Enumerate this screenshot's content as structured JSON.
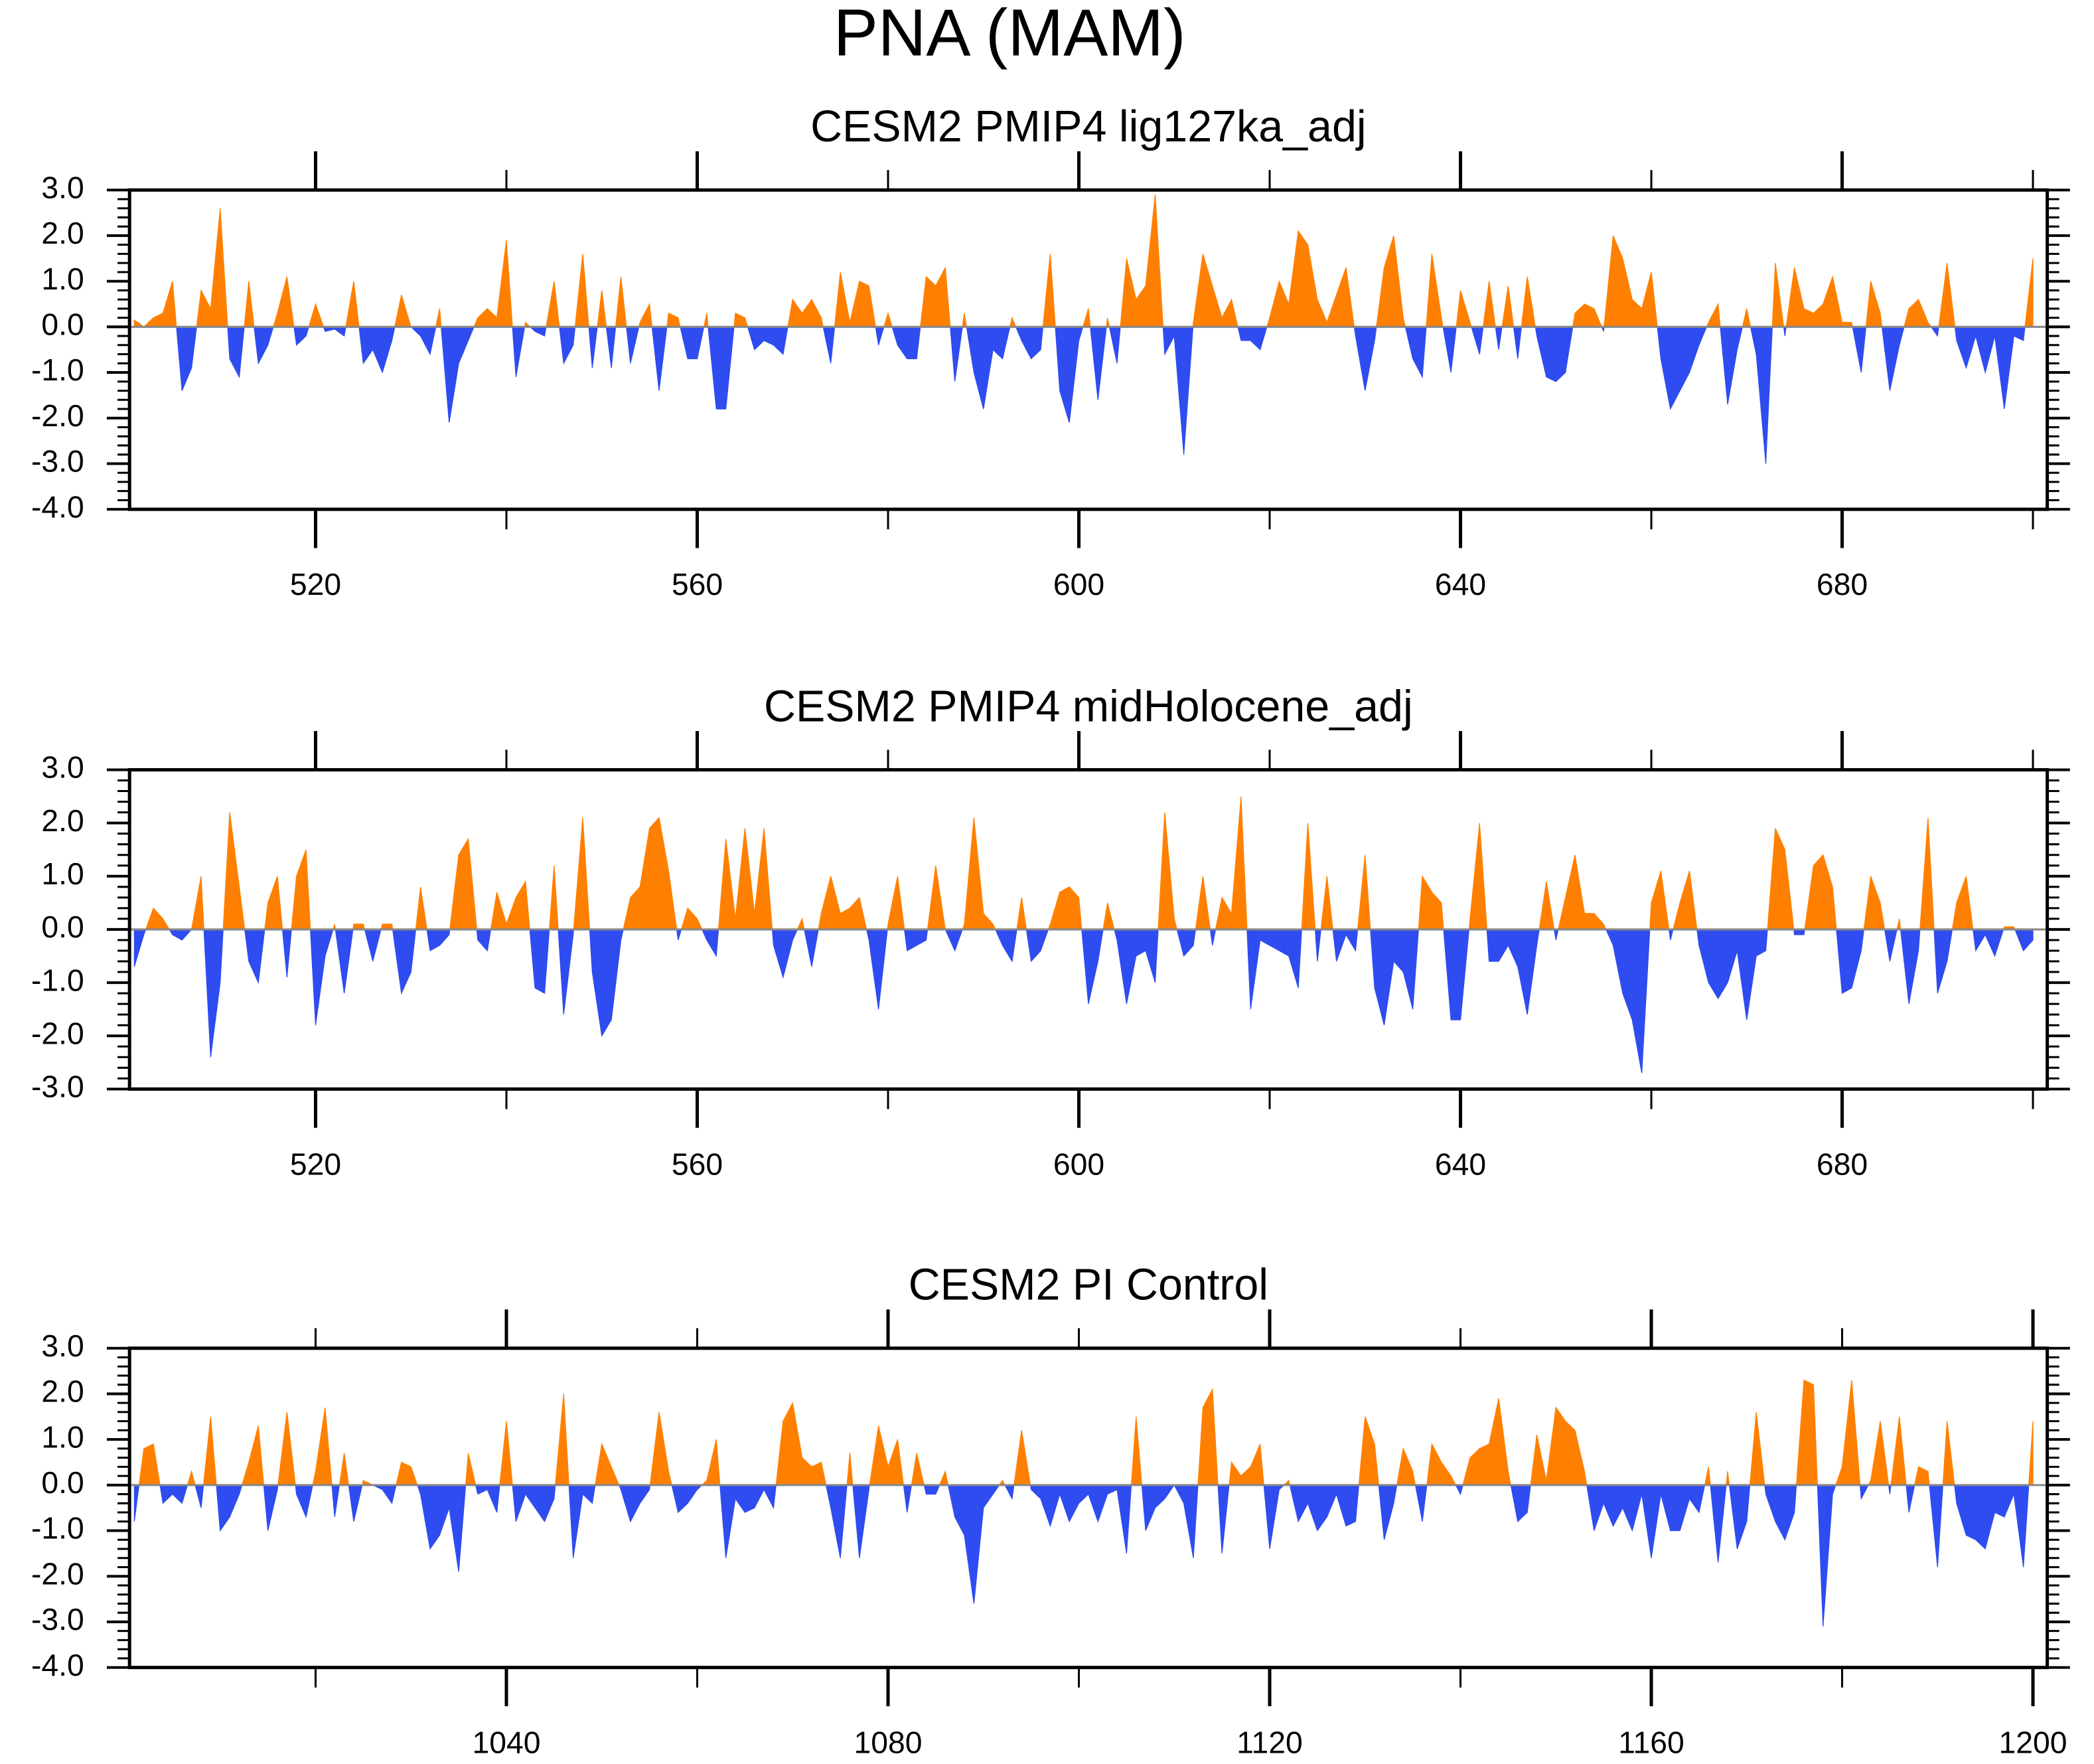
{
  "title": "PNA (MAM)",
  "chart_data": [
    {
      "type": "area",
      "title": "CESM2 PMIP4 lig127ka_adj",
      "color_above": "#ff8000",
      "color_below": "#2f4cf0",
      "xlim": [
        500.5,
        701.5
      ],
      "xticks": [
        520,
        560,
        600,
        640,
        680
      ],
      "ylim": [
        -4,
        3
      ],
      "yticks": [
        {
          "value": -4,
          "label": "-4.0"
        },
        {
          "value": -3,
          "label": "-3.0"
        },
        {
          "value": -2,
          "label": "-2.0"
        },
        {
          "value": -1,
          "label": "-1.0"
        },
        {
          "value": 0,
          "label": "0.0"
        },
        {
          "value": 1,
          "label": "1.0"
        },
        {
          "value": 2,
          "label": "2.0"
        },
        {
          "value": 3,
          "label": "3.0"
        }
      ],
      "x": [
        501,
        502,
        503,
        504,
        505,
        506,
        507,
        508,
        509,
        510,
        511,
        512,
        513,
        514,
        515,
        516,
        517,
        518,
        519,
        520,
        521,
        522,
        523,
        524,
        525,
        526,
        527,
        528,
        529,
        530,
        531,
        532,
        533,
        534,
        535,
        536,
        537,
        538,
        539,
        540,
        541,
        542,
        543,
        544,
        545,
        546,
        547,
        548,
        549,
        550,
        551,
        552,
        553,
        554,
        555,
        556,
        557,
        558,
        559,
        560,
        561,
        562,
        563,
        564,
        565,
        566,
        567,
        568,
        569,
        570,
        571,
        572,
        573,
        574,
        575,
        576,
        577,
        578,
        579,
        580,
        581,
        582,
        583,
        584,
        585,
        586,
        587,
        588,
        589,
        590,
        591,
        592,
        593,
        594,
        595,
        596,
        597,
        598,
        599,
        600,
        601,
        602,
        603,
        604,
        605,
        606,
        607,
        608,
        609,
        610,
        611,
        612,
        613,
        614,
        615,
        616,
        617,
        618,
        619,
        620,
        621,
        622,
        623,
        624,
        625,
        626,
        627,
        628,
        629,
        630,
        631,
        632,
        633,
        634,
        635,
        636,
        637,
        638,
        639,
        640,
        641,
        642,
        643,
        644,
        645,
        646,
        647,
        648,
        649,
        650,
        651,
        652,
        653,
        654,
        655,
        656,
        657,
        658,
        659,
        660,
        661,
        662,
        663,
        664,
        665,
        666,
        667,
        668,
        669,
        670,
        671,
        672,
        673,
        674,
        675,
        676,
        677,
        678,
        679,
        680,
        681,
        682,
        683,
        684,
        685,
        686,
        687,
        688,
        689,
        690,
        691,
        692,
        693,
        694,
        695,
        696,
        697,
        698,
        699,
        700
      ],
      "values": [
        0.15,
        0,
        0.2,
        0.3,
        1.0,
        -1.4,
        -0.9,
        0.8,
        0.4,
        2.6,
        -0.7,
        -1.1,
        1.0,
        -0.8,
        -0.4,
        0.3,
        1.1,
        -0.4,
        -0.2,
        0.5,
        -0.1,
        -0.05,
        -0.2,
        1.0,
        -0.8,
        -0.5,
        -1.0,
        -0.3,
        0.7,
        0,
        -0.2,
        -0.6,
        0.4,
        -2.1,
        -0.8,
        -0.3,
        0.2,
        0.4,
        0.2,
        1.9,
        -1.1,
        0.1,
        -0.1,
        -0.2,
        1.0,
        -0.8,
        -0.4,
        1.6,
        -0.9,
        0.8,
        -0.9,
        1.1,
        -0.8,
        0.1,
        0.5,
        -1.4,
        0.3,
        0.2,
        -0.7,
        -0.7,
        0.3,
        -1.8,
        -1.8,
        0.3,
        0.2,
        -0.5,
        -0.3,
        -0.4,
        -0.6,
        0.6,
        0.3,
        0.6,
        0.2,
        -0.8,
        1.2,
        0.1,
        1.0,
        0.9,
        -0.4,
        0.3,
        -0.4,
        -0.7,
        -0.7,
        1.1,
        0.9,
        1.3,
        -1.2,
        0.3,
        -1.0,
        -1.8,
        -0.5,
        -0.7,
        0.2,
        -0.3,
        -0.7,
        -0.5,
        1.6,
        -1.4,
        -2.1,
        -0.3,
        0.4,
        -1.6,
        0.2,
        -0.8,
        1.5,
        0.6,
        0.9,
        2.9,
        -0.6,
        -0.2,
        -2.8,
        0.1,
        1.6,
        0.9,
        0.2,
        0.6,
        -0.3,
        -0.3,
        -0.5,
        0.2,
        1.0,
        0.5,
        2.1,
        1.8,
        0.6,
        0.1,
        0.7,
        1.3,
        -0.2,
        -1.4,
        -0.3,
        1.3,
        2.0,
        0.2,
        -0.7,
        -1.1,
        1.6,
        0.2,
        -1.0,
        0.8,
        0.1,
        -0.6,
        1.0,
        -0.5,
        0.9,
        -0.7,
        1.1,
        -0.2,
        -1.1,
        -1.2,
        -1.0,
        0.3,
        0.5,
        0.4,
        -0.1,
        2.0,
        1.5,
        0.6,
        0.4,
        1.2,
        -0.7,
        -1.8,
        -1.4,
        -1.0,
        -0.4,
        0.1,
        0.5,
        -1.7,
        -0.5,
        0.4,
        -0.6,
        -3.0,
        1.4,
        -0.2,
        1.3,
        0.4,
        0.3,
        0.5,
        1.1,
        0.1,
        0.1,
        -1.0,
        1.0,
        0.3,
        -1.4,
        -0.4,
        0.4,
        0.6,
        0.1,
        -0.2,
        1.4,
        -0.3,
        -0.9,
        -0.2,
        -1.0,
        -0.2,
        -1.8,
        -0.2,
        -0.3,
        1.5
      ]
    },
    {
      "type": "area",
      "title": "CESM2 PMIP4 midHolocene_adj",
      "color_above": "#ff8000",
      "color_below": "#2f4cf0",
      "xlim": [
        500.5,
        701.5
      ],
      "xticks": [
        520,
        560,
        600,
        640,
        680
      ],
      "ylim": [
        -3,
        3
      ],
      "yticks": [
        {
          "value": -3,
          "label": "-3.0"
        },
        {
          "value": -2,
          "label": "-2.0"
        },
        {
          "value": -1,
          "label": "-1.0"
        },
        {
          "value": 0,
          "label": "0.0"
        },
        {
          "value": 1,
          "label": "1.0"
        },
        {
          "value": 2,
          "label": "2.0"
        },
        {
          "value": 3,
          "label": "3.0"
        }
      ],
      "x": [
        501,
        502,
        503,
        504,
        505,
        506,
        507,
        508,
        509,
        510,
        511,
        512,
        513,
        514,
        515,
        516,
        517,
        518,
        519,
        520,
        521,
        522,
        523,
        524,
        525,
        526,
        527,
        528,
        529,
        530,
        531,
        532,
        533,
        534,
        535,
        536,
        537,
        538,
        539,
        540,
        541,
        542,
        543,
        544,
        545,
        546,
        547,
        548,
        549,
        550,
        551,
        552,
        553,
        554,
        555,
        556,
        557,
        558,
        559,
        560,
        561,
        562,
        563,
        564,
        565,
        566,
        567,
        568,
        569,
        570,
        571,
        572,
        573,
        574,
        575,
        576,
        577,
        578,
        579,
        580,
        581,
        582,
        583,
        584,
        585,
        586,
        587,
        588,
        589,
        590,
        591,
        592,
        593,
        594,
        595,
        596,
        597,
        598,
        599,
        600,
        601,
        602,
        603,
        604,
        605,
        606,
        607,
        608,
        609,
        610,
        611,
        612,
        613,
        614,
        615,
        616,
        617,
        618,
        619,
        620,
        621,
        622,
        623,
        624,
        625,
        626,
        627,
        628,
        629,
        630,
        631,
        632,
        633,
        634,
        635,
        636,
        637,
        638,
        639,
        640,
        641,
        642,
        643,
        644,
        645,
        646,
        647,
        648,
        649,
        650,
        651,
        652,
        653,
        654,
        655,
        656,
        657,
        658,
        659,
        660,
        661,
        662,
        663,
        664,
        665,
        666,
        667,
        668,
        669,
        670,
        671,
        672,
        673,
        674,
        675,
        676,
        677,
        678,
        679,
        680,
        681,
        682,
        683,
        684,
        685,
        686,
        687,
        688,
        689,
        690,
        691,
        692,
        693,
        694,
        695,
        696,
        697,
        698,
        699,
        700
      ],
      "values": [
        -0.7,
        -0.1,
        0.4,
        0.2,
        -0.1,
        -0.2,
        0,
        1.0,
        -2.4,
        -1.0,
        2.2,
        0.8,
        -0.6,
        -1.0,
        0.5,
        1.0,
        -0.9,
        1.0,
        1.5,
        -1.8,
        -0.5,
        0.1,
        -1.2,
        0.1,
        0.1,
        -0.6,
        0.1,
        0.1,
        -1.2,
        -0.8,
        0.8,
        -0.4,
        -0.3,
        -0.1,
        1.4,
        1.7,
        -0.2,
        -0.4,
        0.7,
        0.1,
        0.6,
        0.9,
        -1.1,
        -1.2,
        1.2,
        -1.6,
        -0.1,
        2.1,
        -0.8,
        -2.0,
        -1.7,
        -0.2,
        0.6,
        0.8,
        1.9,
        2.1,
        1.1,
        -0.2,
        0.4,
        0.2,
        -0.2,
        -0.5,
        1.7,
        0.2,
        1.9,
        0.3,
        1.9,
        -0.3,
        -0.9,
        -0.2,
        0.2,
        -0.7,
        0.3,
        1.0,
        0.3,
        0.4,
        0.6,
        -0.2,
        -1.5,
        0.1,
        1.0,
        -0.4,
        -0.3,
        -0.2,
        1.2,
        0,
        -0.4,
        0.1,
        2.1,
        0.3,
        0.1,
        -0.3,
        -0.6,
        0.6,
        -0.6,
        -0.4,
        0.1,
        0.7,
        0.8,
        0.6,
        -1.4,
        -0.6,
        0.5,
        -0.2,
        -1.4,
        -0.5,
        -0.4,
        -1.0,
        2.2,
        0.2,
        -0.5,
        -0.3,
        1.0,
        -0.3,
        0.6,
        0.3,
        2.5,
        -1.5,
        -0.2,
        -0.3,
        -0.4,
        -0.5,
        -1.1,
        2.0,
        -0.6,
        1.0,
        -0.6,
        -0.1,
        -0.4,
        1.4,
        -1.1,
        -1.8,
        -0.6,
        -0.8,
        -1.5,
        1.0,
        0.7,
        0.5,
        -1.7,
        -1.7,
        0.2,
        2.0,
        -0.6,
        -0.6,
        -0.3,
        -0.7,
        -1.6,
        -0.3,
        0.9,
        -0.2,
        0.6,
        1.4,
        0.3,
        0.3,
        0.1,
        -0.3,
        -1.2,
        -1.7,
        -2.7,
        0.5,
        1.1,
        -0.2,
        0.5,
        1.1,
        -0.3,
        -1.0,
        -1.3,
        -1.0,
        -0.4,
        -1.7,
        -0.5,
        -0.4,
        1.9,
        1.5,
        -0.1,
        -0.1,
        1.2,
        1.4,
        0.8,
        -1.2,
        -1.1,
        -0.4,
        1.0,
        0.5,
        -0.6,
        0.2,
        -1.4,
        -0.4,
        2.1,
        -1.2,
        -0.6,
        0.5,
        1.0,
        -0.4,
        -0.1,
        -0.5,
        0.05,
        0.05,
        -0.4,
        -0.2
      ]
    },
    {
      "type": "area",
      "title": "CESM2 PI Control",
      "color_above": "#ff8000",
      "color_below": "#2f4cf0",
      "xlim": [
        1000.5,
        1201.5
      ],
      "xticks": [
        1040,
        1080,
        1120,
        1160,
        1200
      ],
      "ylim": [
        -4,
        3
      ],
      "yticks": [
        {
          "value": -4,
          "label": "-4.0"
        },
        {
          "value": -3,
          "label": "-3.0"
        },
        {
          "value": -2,
          "label": "-2.0"
        },
        {
          "value": -1,
          "label": "-1.0"
        },
        {
          "value": 0,
          "label": "0.0"
        },
        {
          "value": 1,
          "label": "1.0"
        },
        {
          "value": 2,
          "label": "2.0"
        },
        {
          "value": 3,
          "label": "3.0"
        }
      ],
      "x": [
        1001,
        1002,
        1003,
        1004,
        1005,
        1006,
        1007,
        1008,
        1009,
        1010,
        1011,
        1012,
        1013,
        1014,
        1015,
        1016,
        1017,
        1018,
        1019,
        1020,
        1021,
        1022,
        1023,
        1024,
        1025,
        1026,
        1027,
        1028,
        1029,
        1030,
        1031,
        1032,
        1033,
        1034,
        1035,
        1036,
        1037,
        1038,
        1039,
        1040,
        1041,
        1042,
        1043,
        1044,
        1045,
        1046,
        1047,
        1048,
        1049,
        1050,
        1051,
        1052,
        1053,
        1054,
        1055,
        1056,
        1057,
        1058,
        1059,
        1060,
        1061,
        1062,
        1063,
        1064,
        1065,
        1066,
        1067,
        1068,
        1069,
        1070,
        1071,
        1072,
        1073,
        1074,
        1075,
        1076,
        1077,
        1078,
        1079,
        1080,
        1081,
        1082,
        1083,
        1084,
        1085,
        1086,
        1087,
        1088,
        1089,
        1090,
        1091,
        1092,
        1093,
        1094,
        1095,
        1096,
        1097,
        1098,
        1099,
        1100,
        1101,
        1102,
        1103,
        1104,
        1105,
        1106,
        1107,
        1108,
        1109,
        1110,
        1111,
        1112,
        1113,
        1114,
        1115,
        1116,
        1117,
        1118,
        1119,
        1120,
        1121,
        1122,
        1123,
        1124,
        1125,
        1126,
        1127,
        1128,
        1129,
        1130,
        1131,
        1132,
        1133,
        1134,
        1135,
        1136,
        1137,
        1138,
        1139,
        1140,
        1141,
        1142,
        1143,
        1144,
        1145,
        1146,
        1147,
        1148,
        1149,
        1150,
        1151,
        1152,
        1153,
        1154,
        1155,
        1156,
        1157,
        1158,
        1159,
        1160,
        1161,
        1162,
        1163,
        1164,
        1165,
        1166,
        1167,
        1168,
        1169,
        1170,
        1171,
        1172,
        1173,
        1174,
        1175,
        1176,
        1177,
        1178,
        1179,
        1180,
        1181,
        1182,
        1183,
        1184,
        1185,
        1186,
        1187,
        1188,
        1189,
        1190,
        1191,
        1192,
        1193,
        1194,
        1195,
        1196,
        1197,
        1198,
        1199,
        1200
      ],
      "values": [
        -0.8,
        0.8,
        0.9,
        -0.4,
        -0.2,
        -0.4,
        0.3,
        -0.5,
        1.5,
        -1.0,
        -0.7,
        -0.2,
        0.5,
        1.3,
        -1.0,
        -0.1,
        1.6,
        -0.2,
        -0.7,
        0.3,
        1.7,
        -0.7,
        0.7,
        -0.8,
        0.1,
        0,
        -0.1,
        -0.4,
        0.5,
        0.4,
        -0.2,
        -1.4,
        -1.1,
        -0.5,
        -1.9,
        0.7,
        -0.2,
        -0.1,
        -0.6,
        1.4,
        -0.8,
        -0.2,
        -0.5,
        -0.8,
        -0.3,
        2.0,
        -1.6,
        -0.2,
        -0.4,
        0.9,
        0.4,
        -0.1,
        -0.8,
        -0.4,
        -0.1,
        1.6,
        0.3,
        -0.6,
        -0.4,
        -0.1,
        0.1,
        1.0,
        -1.6,
        -0.3,
        -0.6,
        -0.5,
        -0.1,
        -0.5,
        1.4,
        1.8,
        0.6,
        0.4,
        0.5,
        -0.5,
        -1.6,
        0.7,
        -1.6,
        -0.1,
        1.3,
        0.4,
        1.0,
        -0.6,
        0.7,
        -0.2,
        -0.2,
        0.3,
        -0.7,
        -1.1,
        -2.6,
        -0.5,
        -0.2,
        0.1,
        -0.3,
        1.2,
        -0.1,
        -0.3,
        -0.9,
        -0.2,
        -0.8,
        -0.4,
        -0.2,
        -0.8,
        -0.2,
        -0.1,
        -1.5,
        1.5,
        -1.0,
        -0.5,
        -0.3,
        0,
        -0.4,
        -1.6,
        1.7,
        2.1,
        -1.5,
        0.5,
        0.2,
        0.4,
        0.9,
        -1.4,
        -0.1,
        0.1,
        -0.8,
        -0.4,
        -1.0,
        -0.7,
        -0.2,
        -0.9,
        -0.8,
        1.5,
        0.9,
        -1.2,
        -0.4,
        0.8,
        0.3,
        -0.8,
        0.9,
        0.5,
        0.2,
        -0.2,
        0.6,
        0.8,
        0.9,
        1.9,
        0.3,
        -0.8,
        -0.6,
        1.1,
        0.1,
        1.7,
        1.4,
        1.2,
        0.3,
        -1.0,
        -0.4,
        -0.9,
        -0.5,
        -1.0,
        -0.2,
        -1.6,
        -0.2,
        -1.0,
        -1.0,
        -0.3,
        -0.6,
        0.4,
        -1.7,
        0.3,
        -1.4,
        -0.8,
        1.6,
        -0.2,
        -0.8,
        -1.2,
        -0.6,
        2.3,
        2.2,
        -3.1,
        -0.2,
        0.4,
        2.3,
        -0.3,
        0.1,
        1.4,
        -0.2,
        1.5,
        -0.6,
        0.4,
        0.3,
        -1.8,
        1.4,
        -0.4,
        -1.1,
        -1.2,
        -1.4,
        -0.6,
        -0.7,
        -0.2,
        -1.8,
        1.4
      ]
    }
  ]
}
